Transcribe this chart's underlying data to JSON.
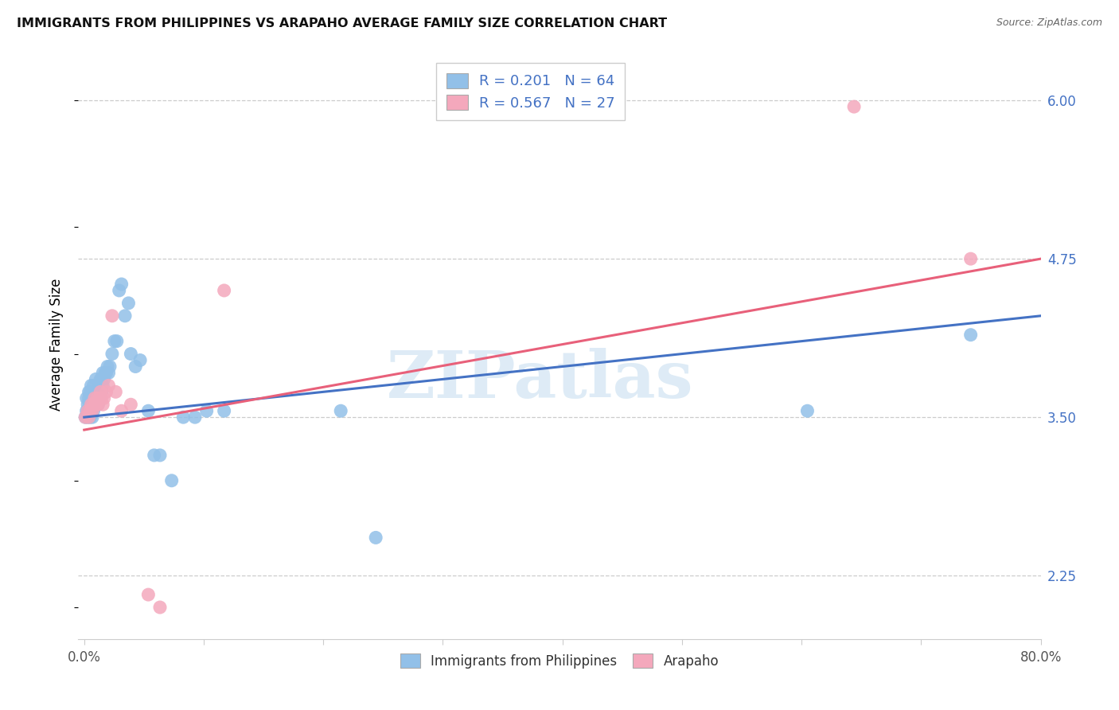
{
  "title": "IMMIGRANTS FROM PHILIPPINES VS ARAPAHO AVERAGE FAMILY SIZE CORRELATION CHART",
  "source": "Source: ZipAtlas.com",
  "ylabel": "Average Family Size",
  "xlim": [
    -0.005,
    0.82
  ],
  "ylim": [
    1.75,
    6.4
  ],
  "yticks_right": [
    2.25,
    3.5,
    4.75,
    6.0
  ],
  "ytick_labels_right": [
    "2.25",
    "3.50",
    "4.75",
    "6.00"
  ],
  "xtick_positions": [
    0.0,
    0.1025,
    0.205,
    0.3075,
    0.41,
    0.5125,
    0.615,
    0.7175,
    0.82
  ],
  "xtick_labels": [
    "0.0%",
    "",
    "",
    "",
    "",
    "",
    "",
    "",
    "80.0%"
  ],
  "legend_r1": "R = 0.201   N = 64",
  "legend_r2": "R = 0.567   N = 27",
  "color_blue": "#92C0E8",
  "color_pink": "#F4A8BC",
  "trendline_blue": "#4472C4",
  "trendline_pink": "#E8607A",
  "watermark": "ZIPatlas",
  "blue_x": [
    0.001,
    0.002,
    0.002,
    0.003,
    0.003,
    0.004,
    0.004,
    0.004,
    0.005,
    0.005,
    0.005,
    0.006,
    0.006,
    0.006,
    0.007,
    0.007,
    0.007,
    0.008,
    0.008,
    0.008,
    0.009,
    0.009,
    0.01,
    0.01,
    0.01,
    0.011,
    0.011,
    0.012,
    0.012,
    0.013,
    0.014,
    0.014,
    0.015,
    0.015,
    0.016,
    0.016,
    0.017,
    0.018,
    0.019,
    0.02,
    0.021,
    0.022,
    0.024,
    0.026,
    0.028,
    0.03,
    0.032,
    0.035,
    0.038,
    0.04,
    0.044,
    0.048,
    0.055,
    0.06,
    0.065,
    0.075,
    0.085,
    0.095,
    0.105,
    0.12,
    0.22,
    0.25,
    0.62,
    0.76
  ],
  "blue_y": [
    3.5,
    3.55,
    3.65,
    3.5,
    3.6,
    3.55,
    3.65,
    3.7,
    3.5,
    3.6,
    3.7,
    3.55,
    3.65,
    3.75,
    3.5,
    3.6,
    3.7,
    3.55,
    3.65,
    3.75,
    3.6,
    3.7,
    3.6,
    3.7,
    3.8,
    3.6,
    3.7,
    3.6,
    3.7,
    3.65,
    3.7,
    3.8,
    3.7,
    3.8,
    3.75,
    3.85,
    3.8,
    3.85,
    3.85,
    3.9,
    3.85,
    3.9,
    4.0,
    4.1,
    4.1,
    4.5,
    4.55,
    4.3,
    4.4,
    4.0,
    3.9,
    3.95,
    3.55,
    3.2,
    3.2,
    3.0,
    3.5,
    3.5,
    3.55,
    3.55,
    3.55,
    2.55,
    3.55,
    4.15
  ],
  "pink_x": [
    0.001,
    0.003,
    0.004,
    0.005,
    0.006,
    0.007,
    0.008,
    0.009,
    0.01,
    0.011,
    0.012,
    0.013,
    0.014,
    0.015,
    0.016,
    0.017,
    0.019,
    0.021,
    0.024,
    0.027,
    0.032,
    0.04,
    0.055,
    0.065,
    0.12,
    0.66,
    0.76
  ],
  "pink_y": [
    3.5,
    3.55,
    3.5,
    3.55,
    3.6,
    3.55,
    3.6,
    3.65,
    3.6,
    3.65,
    3.6,
    3.65,
    3.7,
    3.65,
    3.6,
    3.65,
    3.7,
    3.75,
    4.3,
    3.7,
    3.55,
    3.6,
    2.1,
    2.0,
    4.5,
    5.95,
    4.75
  ],
  "blue_trend": [
    0.0,
    0.82,
    3.5,
    4.3
  ],
  "pink_trend": [
    0.0,
    0.82,
    3.4,
    4.75
  ]
}
